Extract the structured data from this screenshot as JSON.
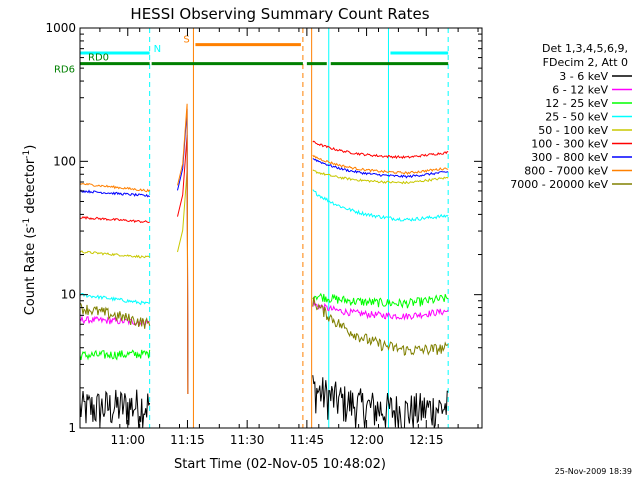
{
  "chart_data": {
    "type": "line",
    "title": "HESSI Observing Summary Count Rates",
    "xlabel": "Start Time (02-Nov-05 10:48:02)",
    "ylabel_main": "Count Rate (s",
    "ylabel_sup1": "-1",
    "ylabel_mid": " detector",
    "ylabel_sup2": "-1",
    "ylabel_end": ")",
    "yscale": "log",
    "ylim": [
      1,
      1000
    ],
    "xlim_min": [
      0,
      101
    ],
    "x_ticks": [
      {
        "label": "11:00",
        "min": 12
      },
      {
        "label": "11:15",
        "min": 27
      },
      {
        "label": "11:30",
        "min": 42
      },
      {
        "label": "11:45",
        "min": 57
      },
      {
        "label": "12:00",
        "min": 72
      },
      {
        "label": "12:15",
        "min": 87
      }
    ],
    "y_ticks": [
      {
        "label": "1",
        "v": 1
      },
      {
        "label": "10",
        "v": 10
      },
      {
        "label": "100",
        "v": 100
      },
      {
        "label": "1000",
        "v": 1000
      }
    ],
    "legend_header": [
      "Det 1,3,4,5,6,9,",
      "FDecim 2, Att 0"
    ],
    "series": [
      {
        "name": "3 - 6 keV",
        "color": "#000000",
        "seg1": [
          1.4,
          1.5
        ],
        "seg2": [
          2.0,
          1.3
        ],
        "noise": 0.35
      },
      {
        "name": "6 - 12 keV",
        "color": "#ff00ff",
        "seg1": [
          6.5,
          6.2
        ],
        "seg2": [
          8.5,
          6.8
        ],
        "noise": 0.06
      },
      {
        "name": "12 - 25 keV",
        "color": "#00ff00",
        "seg1": [
          3.5,
          3.6
        ],
        "seg2": [
          10.0,
          8.5
        ],
        "noise": 0.08
      },
      {
        "name": "25 - 50 keV",
        "color": "#00ffff",
        "seg1": [
          10.0,
          8.5
        ],
        "seg2": [
          60.0,
          35.0
        ],
        "noise": 0.03
      },
      {
        "name": "50 - 100 keV",
        "color": "#c8c800",
        "seg1": [
          21.0,
          19.0
        ],
        "seg2": [
          85.0,
          68.0
        ],
        "noise": 0.02
      },
      {
        "name": "100 - 300 keV",
        "color": "#ff0000",
        "seg1": [
          38.0,
          35.0
        ],
        "seg2": [
          140.0,
          105.0
        ],
        "noise": 0.02
      },
      {
        "name": "300 - 800 keV",
        "color": "#0000ff",
        "seg1": [
          60.0,
          55.0
        ],
        "seg2": [
          105.0,
          75.0
        ],
        "noise": 0.02
      },
      {
        "name": "800 - 7000 keV",
        "color": "#ff8000",
        "seg1": [
          68.0,
          60.0
        ],
        "seg2": [
          110.0,
          80.0
        ],
        "noise": 0.02
      },
      {
        "name": "7000 - 20000 keV",
        "color": "#808000",
        "seg1": [
          8.0,
          6.0
        ],
        "seg2": [
          9.0,
          3.5
        ],
        "noise": 0.1
      }
    ],
    "segments_min": {
      "seg1": [
        0,
        17.5
      ],
      "seg2": [
        58.5,
        92.5
      ]
    },
    "flags": [
      {
        "label": "N",
        "color": "#00ffff",
        "bars_min": [
          [
            0,
            17.5
          ],
          [
            78,
            92.5
          ]
        ],
        "v": 650
      },
      {
        "label": "S",
        "color": "#ff8000",
        "bars_min": [
          [
            29,
            55.5
          ]
        ],
        "v": 750
      },
      {
        "label": "RD0",
        "color": "#008000",
        "bars_min": [
          [
            0,
            17.5
          ],
          [
            18,
            56
          ],
          [
            57,
            62
          ],
          [
            63,
            92.5
          ]
        ],
        "v": 540
      }
    ],
    "flag_row_label": "RD6",
    "vlines_min": [
      {
        "min": 0,
        "color": "#00ffff",
        "dash": false
      },
      {
        "min": 17.5,
        "color": "#00ffff",
        "dash": true
      },
      {
        "min": 28.5,
        "color": "#ff8000",
        "dash": false
      },
      {
        "min": 56,
        "color": "#ff8000",
        "dash": true
      },
      {
        "min": 58.2,
        "color": "#ff8000",
        "dash": false
      },
      {
        "min": 62.5,
        "color": "#00ffff",
        "dash": false
      },
      {
        "min": 77.5,
        "color": "#00ffff",
        "dash": false
      },
      {
        "min": 92.5,
        "color": "#00ffff",
        "dash": true
      }
    ],
    "timestamp": "25-Nov-2009 18:39"
  }
}
